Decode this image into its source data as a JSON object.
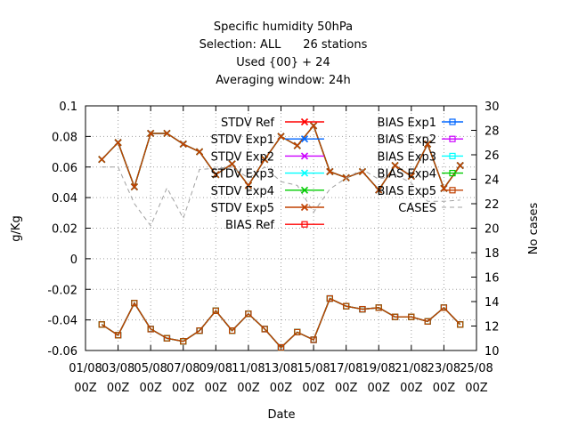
{
  "chart_data": {
    "type": "line",
    "title_lines": [
      "Specific humidity 50hPa",
      "Selection: ALL      26 stations",
      "Used {00} + 24",
      "Averaging window: 24h"
    ],
    "xlabel": "Date",
    "ylabel": "g/Kg",
    "y2label": "No cases",
    "ylim": [
      -0.06,
      0.1
    ],
    "y2lim": [
      10,
      30
    ],
    "yticks": [
      "0.1",
      "0.08",
      "0.06",
      "0.04",
      "0.02",
      "0",
      "-0.02",
      "-0.04",
      "-0.06"
    ],
    "y2ticks": [
      "30",
      "28",
      "26",
      "24",
      "22",
      "20",
      "18",
      "16",
      "14",
      "12",
      "10"
    ],
    "xlim": [
      1,
      25
    ],
    "xticks": [
      {
        "day": 1,
        "line1": "01/08",
        "line2": "00Z"
      },
      {
        "day": 3,
        "line1": "03/08",
        "line2": "00Z"
      },
      {
        "day": 5,
        "line1": "05/08",
        "line2": "00Z"
      },
      {
        "day": 7,
        "line1": "07/08",
        "line2": "00Z"
      },
      {
        "day": 9,
        "line1": "09/08",
        "line2": "00Z"
      },
      {
        "day": 11,
        "line1": "11/08",
        "line2": "00Z"
      },
      {
        "day": 13,
        "line1": "13/08",
        "line2": "00Z"
      },
      {
        "day": 15,
        "line1": "15/08",
        "line2": "00Z"
      },
      {
        "day": 17,
        "line1": "17/08",
        "line2": "00Z"
      },
      {
        "day": 19,
        "line1": "19/08",
        "line2": "00Z"
      },
      {
        "day": 21,
        "line1": "21/08",
        "line2": "00Z"
      },
      {
        "day": 23,
        "line1": "23/08",
        "line2": "00Z"
      },
      {
        "day": 25,
        "line1": "25/08",
        "line2": "00Z"
      }
    ],
    "x": [
      2,
      3,
      4,
      5,
      6,
      7,
      8,
      9,
      10,
      11,
      12,
      13,
      14,
      15,
      16,
      17,
      18,
      19,
      20,
      21,
      22,
      23,
      24
    ],
    "legend_position": "top-right",
    "series": [
      {
        "name": "STDV Ref",
        "color": "#ff0000",
        "marker": "x",
        "axis": "y1",
        "values": [
          0.065,
          0.076,
          0.047,
          0.082,
          0.082,
          0.075,
          0.07,
          0.055,
          0.062,
          0.048,
          0.065,
          0.08,
          0.074,
          0.087,
          0.057,
          0.053,
          0.057,
          0.045,
          0.061,
          0.054,
          0.075,
          0.046,
          0.061
        ]
      },
      {
        "name": "STDV Exp1",
        "color": "#0066ff",
        "marker": "x",
        "axis": "y1",
        "values": [
          0.065,
          0.076,
          0.047,
          0.082,
          0.082,
          0.075,
          0.07,
          0.055,
          0.062,
          0.048,
          0.065,
          0.08,
          0.074,
          0.087,
          0.057,
          0.053,
          0.057,
          0.045,
          0.061,
          0.054,
          0.075,
          0.046,
          0.061
        ]
      },
      {
        "name": "STDV Exp2",
        "color": "#cc00ff",
        "marker": "x",
        "axis": "y1",
        "values": [
          0.065,
          0.076,
          0.047,
          0.082,
          0.082,
          0.075,
          0.07,
          0.055,
          0.062,
          0.048,
          0.065,
          0.08,
          0.074,
          0.087,
          0.057,
          0.053,
          0.057,
          0.045,
          0.061,
          0.054,
          0.075,
          0.046,
          0.061
        ]
      },
      {
        "name": "STDV Exp3",
        "color": "#00ffff",
        "marker": "x",
        "axis": "y1",
        "values": [
          0.065,
          0.076,
          0.047,
          0.082,
          0.082,
          0.075,
          0.07,
          0.055,
          0.062,
          0.048,
          0.065,
          0.08,
          0.074,
          0.087,
          0.057,
          0.053,
          0.057,
          0.045,
          0.061,
          0.054,
          0.075,
          0.046,
          0.061
        ]
      },
      {
        "name": "STDV Exp4",
        "color": "#00cc00",
        "marker": "x",
        "axis": "y1",
        "values": [
          0.065,
          0.076,
          0.047,
          0.082,
          0.082,
          0.075,
          0.07,
          0.055,
          0.062,
          0.048,
          0.065,
          0.08,
          0.074,
          0.087,
          0.057,
          0.053,
          0.057,
          0.045,
          0.061,
          0.054,
          0.075,
          0.046,
          0.061
        ]
      },
      {
        "name": "STDV Exp5",
        "color": "#c04000",
        "marker": "x",
        "axis": "y1",
        "values": [
          0.065,
          0.076,
          0.047,
          0.082,
          0.082,
          0.075,
          0.07,
          0.055,
          0.062,
          0.048,
          0.065,
          0.08,
          0.074,
          0.087,
          0.057,
          0.053,
          0.057,
          0.045,
          0.061,
          0.054,
          0.075,
          0.046,
          0.061
        ]
      },
      {
        "name": "BIAS Ref",
        "color": "#ff0000",
        "marker": "square",
        "axis": "y1",
        "values": [
          -0.043,
          -0.05,
          -0.029,
          -0.046,
          -0.052,
          -0.054,
          -0.047,
          -0.034,
          -0.047,
          -0.036,
          -0.046,
          -0.058,
          -0.048,
          -0.053,
          -0.026,
          -0.031,
          -0.033,
          -0.032,
          -0.038,
          -0.038,
          -0.041,
          -0.032,
          -0.043
        ]
      },
      {
        "name": "BIAS Exp1",
        "color": "#0066ff",
        "marker": "square",
        "axis": "y1",
        "values": [
          -0.043,
          -0.05,
          -0.029,
          -0.046,
          -0.052,
          -0.054,
          -0.047,
          -0.034,
          -0.047,
          -0.036,
          -0.046,
          -0.058,
          -0.048,
          -0.053,
          -0.026,
          -0.031,
          -0.033,
          -0.032,
          -0.038,
          -0.038,
          -0.041,
          -0.032,
          -0.043
        ]
      },
      {
        "name": "BIAS Exp2",
        "color": "#cc00ff",
        "marker": "square",
        "axis": "y1",
        "values": [
          -0.043,
          -0.05,
          -0.029,
          -0.046,
          -0.052,
          -0.054,
          -0.047,
          -0.034,
          -0.047,
          -0.036,
          -0.046,
          -0.058,
          -0.048,
          -0.053,
          -0.026,
          -0.031,
          -0.033,
          -0.032,
          -0.038,
          -0.038,
          -0.041,
          -0.032,
          -0.043
        ]
      },
      {
        "name": "BIAS Exp3",
        "color": "#00ffff",
        "marker": "square",
        "axis": "y1",
        "values": [
          -0.043,
          -0.05,
          -0.029,
          -0.046,
          -0.052,
          -0.054,
          -0.047,
          -0.034,
          -0.047,
          -0.036,
          -0.046,
          -0.058,
          -0.048,
          -0.053,
          -0.026,
          -0.031,
          -0.033,
          -0.032,
          -0.038,
          -0.038,
          -0.041,
          -0.032,
          -0.043
        ]
      },
      {
        "name": "BIAS Exp4",
        "color": "#00cc00",
        "marker": "square",
        "axis": "y1",
        "values": [
          -0.043,
          -0.05,
          -0.029,
          -0.046,
          -0.052,
          -0.054,
          -0.047,
          -0.034,
          -0.047,
          -0.036,
          -0.046,
          -0.058,
          -0.048,
          -0.053,
          -0.026,
          -0.031,
          -0.033,
          -0.032,
          -0.038,
          -0.038,
          -0.041,
          -0.032,
          -0.043
        ]
      },
      {
        "name": "BIAS Exp5",
        "color": "#c04000",
        "marker": "square",
        "axis": "y1",
        "values": [
          -0.043,
          -0.05,
          -0.029,
          -0.046,
          -0.052,
          -0.054,
          -0.047,
          -0.034,
          -0.047,
          -0.036,
          -0.046,
          -0.058,
          -0.048,
          -0.053,
          -0.026,
          -0.031,
          -0.033,
          -0.032,
          -0.038,
          -0.038,
          -0.041,
          -0.032,
          -0.043
        ]
      },
      {
        "name": "CASES",
        "color": "#a0a0a0",
        "marker": "none",
        "dashed": true,
        "axis": "y2",
        "values": [
          25,
          25,
          22,
          20.2,
          23.3,
          20.8,
          24.8,
          24.9,
          25,
          24.1,
          25,
          23.8,
          23.5,
          21.3,
          23.2,
          24.1,
          24.8,
          24,
          24.4,
          23.7,
          22.2,
          22.2,
          22.3
        ]
      }
    ]
  }
}
